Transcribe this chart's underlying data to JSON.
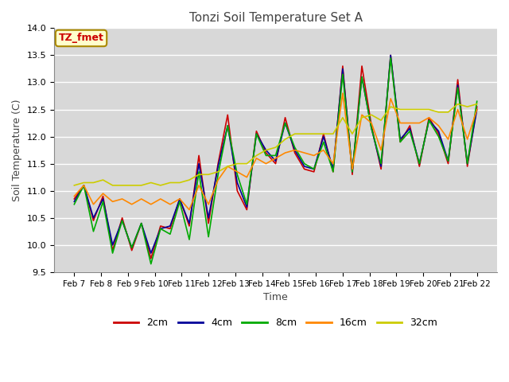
{
  "title": "Tonzi Soil Temperature Set A",
  "xlabel": "Time",
  "ylabel": "Soil Temperature (C)",
  "ylim": [
    9.5,
    14.0
  ],
  "annotation_label": "TZ_fmet",
  "annotation_color": "#cc0000",
  "annotation_bg": "#ffffcc",
  "annotation_border": "#aa8800",
  "fig_bg_color": "#ffffff",
  "plot_bg": "#d8d8d8",
  "grid_color": "#ffffff",
  "legend_entries": [
    "2cm",
    "4cm",
    "8cm",
    "16cm",
    "32cm"
  ],
  "line_colors": [
    "#cc0000",
    "#000099",
    "#00aa00",
    "#ff8800",
    "#cccc00"
  ],
  "x_tick_labels": [
    "Feb 7",
    "Feb 8",
    "Feb 9",
    "Feb 10",
    "Feb 11",
    "Feb 12",
    "Feb 13",
    "Feb 14",
    "Feb 15",
    "Feb 16",
    "Feb 17",
    "Feb 18",
    "Feb 19",
    "Feb 20",
    "Feb 21",
    "Feb 22"
  ],
  "data_2cm": [
    10.85,
    11.1,
    10.45,
    10.9,
    9.9,
    10.5,
    9.9,
    10.4,
    9.75,
    10.35,
    10.3,
    10.85,
    10.35,
    11.65,
    10.4,
    11.5,
    12.4,
    11.0,
    10.65,
    12.1,
    11.7,
    11.5,
    12.35,
    11.7,
    11.4,
    11.35,
    12.05,
    11.35,
    13.3,
    11.3,
    13.3,
    12.2,
    11.4,
    13.5,
    11.9,
    12.2,
    11.45,
    12.35,
    12.05,
    11.5,
    13.05,
    11.45,
    12.55
  ],
  "data_4cm": [
    10.8,
    11.1,
    10.5,
    10.85,
    10.0,
    10.45,
    9.95,
    10.4,
    9.85,
    10.3,
    10.35,
    10.85,
    10.4,
    11.5,
    10.5,
    11.45,
    12.2,
    11.15,
    10.7,
    12.05,
    11.75,
    11.55,
    12.25,
    11.75,
    11.45,
    11.4,
    12.0,
    11.4,
    13.25,
    11.35,
    13.1,
    12.15,
    11.45,
    13.5,
    11.95,
    12.15,
    11.5,
    12.3,
    12.1,
    11.55,
    12.95,
    11.5,
    12.5
  ],
  "data_8cm": [
    10.75,
    11.1,
    10.25,
    10.8,
    9.85,
    10.45,
    9.95,
    10.4,
    9.65,
    10.3,
    10.2,
    10.8,
    10.1,
    11.35,
    10.15,
    11.3,
    12.2,
    11.3,
    10.75,
    12.05,
    11.65,
    11.65,
    12.25,
    11.8,
    11.5,
    11.4,
    11.9,
    11.35,
    13.15,
    11.35,
    13.1,
    12.15,
    11.5,
    13.45,
    11.9,
    12.1,
    11.5,
    12.3,
    12.0,
    11.55,
    12.9,
    11.5,
    12.65
  ],
  "data_16cm": [
    10.9,
    11.1,
    10.75,
    10.95,
    10.8,
    10.85,
    10.75,
    10.85,
    10.75,
    10.85,
    10.75,
    10.85,
    10.65,
    11.1,
    10.75,
    11.2,
    11.45,
    11.35,
    11.25,
    11.6,
    11.5,
    11.6,
    11.7,
    11.75,
    11.7,
    11.65,
    11.75,
    11.5,
    12.8,
    11.4,
    12.4,
    12.25,
    11.75,
    12.7,
    12.25,
    12.25,
    12.25,
    12.35,
    12.2,
    11.95,
    12.5,
    11.95,
    12.5
  ],
  "data_32cm": [
    11.1,
    11.15,
    11.15,
    11.2,
    11.1,
    11.1,
    11.1,
    11.1,
    11.15,
    11.1,
    11.15,
    11.15,
    11.2,
    11.3,
    11.3,
    11.35,
    11.45,
    11.5,
    11.5,
    11.65,
    11.75,
    11.8,
    11.95,
    12.05,
    12.05,
    12.05,
    12.05,
    12.05,
    12.35,
    12.05,
    12.35,
    12.4,
    12.3,
    12.55,
    12.5,
    12.5,
    12.5,
    12.5,
    12.45,
    12.45,
    12.6,
    12.55,
    12.6
  ]
}
